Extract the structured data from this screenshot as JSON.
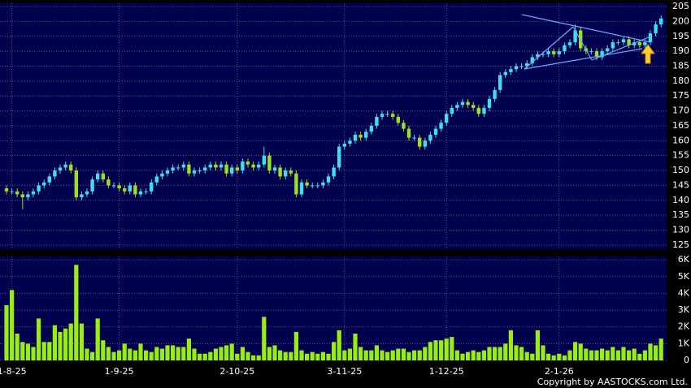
{
  "chart_data": [
    {
      "type": "candlestick",
      "categories": [
        null,
        "1-8-25",
        null,
        null,
        null,
        null,
        null,
        null,
        null,
        null,
        null,
        null,
        null,
        null,
        null,
        null,
        null,
        null,
        null,
        null,
        null,
        "1-9-25",
        null,
        null,
        null,
        null,
        null,
        null,
        null,
        null,
        null,
        null,
        null,
        null,
        null,
        null,
        null,
        null,
        null,
        null,
        null,
        null,
        null,
        "2-10-25",
        null,
        null,
        null,
        null,
        null,
        null,
        null,
        null,
        null,
        null,
        null,
        null,
        null,
        null,
        null,
        null,
        null,
        null,
        null,
        "3-11-25",
        null,
        null,
        null,
        null,
        null,
        null,
        null,
        null,
        null,
        null,
        null,
        null,
        null,
        null,
        null,
        null,
        null,
        null,
        "1-12-25",
        null,
        null,
        null,
        null,
        null,
        null,
        null,
        null,
        null,
        null,
        null,
        null,
        null,
        null,
        null,
        null,
        null,
        null,
        null,
        null,
        "2-1-26",
        null,
        null,
        null,
        null,
        null,
        null,
        null,
        null,
        null,
        null,
        null,
        null,
        null,
        null,
        null,
        null,
        null,
        null,
        null
      ],
      "open": [
        144,
        143,
        143,
        142,
        141,
        142,
        143,
        145,
        146,
        148,
        150,
        151,
        152,
        150,
        141,
        142,
        143,
        147,
        149,
        147,
        145,
        145,
        144,
        143,
        145,
        142,
        143,
        143,
        146,
        148,
        149,
        150,
        151,
        151,
        152,
        149,
        150,
        150,
        151,
        152,
        151,
        152,
        149,
        151,
        150,
        153,
        152,
        151,
        152,
        155,
        150,
        151,
        148,
        150,
        149,
        142,
        146,
        145,
        145,
        145,
        146,
        148,
        151,
        158,
        159,
        160,
        162,
        161,
        163,
        165,
        168,
        169,
        169,
        168,
        166,
        164,
        161,
        161,
        158,
        160,
        162,
        164,
        166,
        169,
        171,
        172,
        173,
        172,
        171,
        169,
        171,
        174,
        177,
        182,
        183,
        184,
        185,
        185,
        186,
        188,
        189,
        189,
        190,
        189,
        190,
        192,
        193,
        197,
        191,
        190,
        190,
        188,
        190,
        191,
        193,
        193,
        194,
        192,
        193,
        192,
        193,
        196,
        199
      ],
      "high": [
        145,
        144,
        144,
        143,
        143,
        144,
        146,
        147,
        149,
        151,
        152,
        153,
        153,
        151,
        143,
        144,
        148,
        150,
        150,
        148,
        146,
        146,
        145,
        146,
        146,
        144,
        144,
        147,
        149,
        150,
        151,
        152,
        152,
        153,
        153,
        151,
        151,
        152,
        153,
        153,
        153,
        153,
        152,
        152,
        154,
        154,
        153,
        153,
        158,
        156,
        152,
        152,
        151,
        151,
        150,
        147,
        147,
        146,
        146,
        147,
        149,
        152,
        159,
        160,
        161,
        163,
        163,
        164,
        166,
        169,
        170,
        170,
        170,
        169,
        167,
        165,
        162,
        162,
        161,
        163,
        165,
        167,
        170,
        172,
        173,
        174,
        174,
        173,
        172,
        172,
        175,
        178,
        183,
        184,
        185,
        186,
        186,
        187,
        189,
        190,
        190,
        191,
        191,
        191,
        193,
        194,
        199,
        198,
        192,
        191,
        191,
        191,
        192,
        194,
        194,
        195,
        195,
        194,
        194,
        194,
        197,
        200,
        202
      ],
      "low": [
        142,
        142,
        141,
        137,
        140,
        141,
        142,
        144,
        145,
        147,
        149,
        150,
        149,
        140,
        140,
        141,
        142,
        146,
        146,
        144,
        144,
        143,
        142,
        142,
        141,
        141,
        142,
        142,
        145,
        147,
        148,
        149,
        150,
        150,
        148,
        148,
        149,
        149,
        150,
        150,
        150,
        148,
        148,
        149,
        149,
        151,
        150,
        150,
        151,
        149,
        149,
        147,
        147,
        148,
        141,
        141,
        144,
        144,
        144,
        144,
        145,
        147,
        150,
        157,
        158,
        159,
        160,
        160,
        162,
        164,
        167,
        168,
        167,
        165,
        163,
        160,
        160,
        157,
        157,
        159,
        161,
        163,
        165,
        168,
        170,
        171,
        171,
        170,
        168,
        168,
        170,
        173,
        176,
        181,
        182,
        183,
        184,
        184,
        185,
        187,
        188,
        188,
        188,
        188,
        189,
        191,
        192,
        190,
        189,
        189,
        187,
        187,
        189,
        190,
        192,
        192,
        191,
        191,
        191,
        191,
        192,
        195,
        198
      ],
      "close": [
        143,
        143,
        142,
        141,
        142,
        143,
        145,
        146,
        148,
        150,
        151,
        152,
        150,
        141,
        142,
        143,
        147,
        149,
        147,
        145,
        145,
        144,
        143,
        145,
        142,
        143,
        143,
        146,
        148,
        149,
        150,
        151,
        151,
        152,
        149,
        150,
        150,
        151,
        152,
        151,
        152,
        149,
        151,
        150,
        153,
        152,
        151,
        152,
        155,
        150,
        151,
        148,
        150,
        149,
        142,
        146,
        145,
        145,
        145,
        146,
        148,
        151,
        158,
        159,
        160,
        162,
        161,
        163,
        165,
        168,
        169,
        169,
        168,
        166,
        164,
        161,
        161,
        158,
        160,
        162,
        164,
        166,
        169,
        171,
        172,
        173,
        172,
        171,
        169,
        171,
        174,
        177,
        182,
        183,
        184,
        185,
        185,
        186,
        188,
        189,
        189,
        190,
        189,
        190,
        192,
        193,
        197,
        191,
        190,
        190,
        188,
        190,
        191,
        193,
        193,
        194,
        192,
        193,
        192,
        193,
        196,
        199,
        201
      ],
      "up_color": "#3ee0f0",
      "down_color": "#9be022",
      "ylim": [
        123.6,
        206.1
      ],
      "yticks": [
        125,
        130,
        135,
        140,
        145,
        150,
        155,
        160,
        165,
        170,
        175,
        180,
        185,
        190,
        195,
        200,
        205
      ],
      "grid": true
    },
    {
      "type": "bar",
      "values": [
        3300,
        4200,
        1600,
        1100,
        1000,
        800,
        2500,
        1100,
        1100,
        2100,
        1700,
        1900,
        2200,
        5700,
        2200,
        700,
        500,
        2500,
        1200,
        800,
        500,
        600,
        1000,
        700,
        600,
        1000,
        600,
        500,
        800,
        700,
        900,
        900,
        800,
        800,
        1300,
        700,
        400,
        400,
        500,
        700,
        800,
        900,
        1000,
        400,
        800,
        500,
        300,
        300,
        2600,
        800,
        900,
        600,
        500,
        500,
        1700,
        600,
        400,
        500,
        400,
        500,
        400,
        1100,
        1800,
        600,
        700,
        1600,
        800,
        600,
        600,
        900,
        600,
        500,
        600,
        700,
        700,
        500,
        600,
        600,
        800,
        1100,
        1200,
        1200,
        1300,
        1400,
        600,
        400,
        500,
        600,
        500,
        600,
        800,
        800,
        800,
        1000,
        1800,
        900,
        800,
        500,
        400,
        1800,
        900,
        400,
        300,
        400,
        300,
        600,
        1100,
        1000,
        700,
        600,
        600,
        700,
        600,
        800,
        600,
        800,
        600,
        700,
        400,
        600,
        1000,
        900,
        1300
      ],
      "color": "#99ee11",
      "ylim": [
        0,
        6200
      ],
      "yticks": [
        0,
        {
          "value": 1000,
          "label": "1K"
        },
        {
          "value": 2000,
          "label": "2K"
        },
        {
          "value": 3000,
          "label": "3K"
        },
        {
          "value": 4000,
          "label": "4K"
        },
        {
          "value": 5000,
          "label": "5K"
        },
        {
          "value": 6000,
          "label": "6K"
        }
      ],
      "grid": true
    }
  ],
  "copyright": "Copyright by AASTOCKS.com Ltd."
}
